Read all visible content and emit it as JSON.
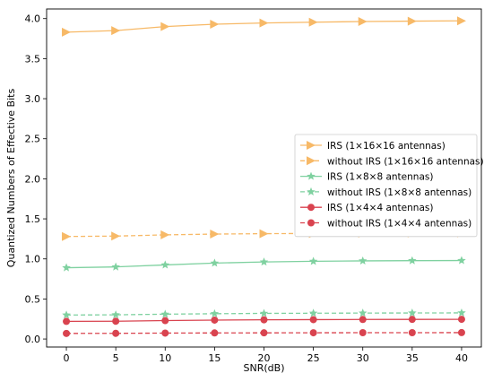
{
  "chart_data": {
    "type": "line",
    "title": "",
    "xlabel": "SNR(dB)",
    "ylabel": "Quantized Numbers of Effective Bits",
    "xlim": [
      -2,
      42
    ],
    "ylim": [
      -0.1,
      4.12
    ],
    "x_ticks": [
      0,
      5,
      10,
      15,
      20,
      25,
      30,
      35,
      40
    ],
    "y_ticks": [
      0.0,
      0.5,
      1.0,
      1.5,
      2.0,
      2.5,
      3.0,
      3.5,
      4.0
    ],
    "x_tick_labels": [
      "0",
      "5",
      "10",
      "15",
      "20",
      "25",
      "30",
      "35",
      "40"
    ],
    "y_tick_labels": [
      "0.0",
      "0.5",
      "1.0",
      "1.5",
      "2.0",
      "2.5",
      "3.0",
      "3.5",
      "4.0"
    ],
    "grid": false,
    "legend_position": "center-right",
    "x": [
      0,
      5,
      10,
      15,
      20,
      25,
      30,
      35,
      40
    ],
    "series": [
      {
        "name": "IRS (1×16×16 antennas)",
        "values": [
          3.83,
          3.85,
          3.9,
          3.93,
          3.945,
          3.955,
          3.963,
          3.968,
          3.972
        ],
        "color": "#F7B967",
        "marker": "triangle-right",
        "dash": "solid"
      },
      {
        "name": "without IRS (1×16×16 antennas)",
        "values": [
          1.28,
          1.285,
          1.3,
          1.31,
          1.315,
          1.318,
          1.321,
          1.323,
          1.325
        ],
        "color": "#F7B967",
        "marker": "triangle-right",
        "dash": "dashed"
      },
      {
        "name": "IRS (1×8×8 antennas)",
        "values": [
          0.89,
          0.9,
          0.925,
          0.948,
          0.962,
          0.97,
          0.975,
          0.978,
          0.98
        ],
        "color": "#7FD1A0",
        "marker": "star",
        "dash": "solid"
      },
      {
        "name": "without IRS (1×8×8 antennas)",
        "values": [
          0.3,
          0.302,
          0.31,
          0.316,
          0.32,
          0.322,
          0.324,
          0.325,
          0.326
        ],
        "color": "#7FD1A0",
        "marker": "star",
        "dash": "dashed"
      },
      {
        "name": "IRS (1×4×4 antennas)",
        "values": [
          0.22,
          0.222,
          0.23,
          0.236,
          0.24,
          0.242,
          0.244,
          0.245,
          0.246
        ],
        "color": "#D9434F",
        "marker": "circle",
        "dash": "solid"
      },
      {
        "name": "without IRS (1×4×4 antennas)",
        "values": [
          0.07,
          0.071,
          0.074,
          0.076,
          0.077,
          0.078,
          0.079,
          0.079,
          0.08
        ],
        "color": "#D9434F",
        "marker": "circle",
        "dash": "dashed"
      }
    ]
  }
}
